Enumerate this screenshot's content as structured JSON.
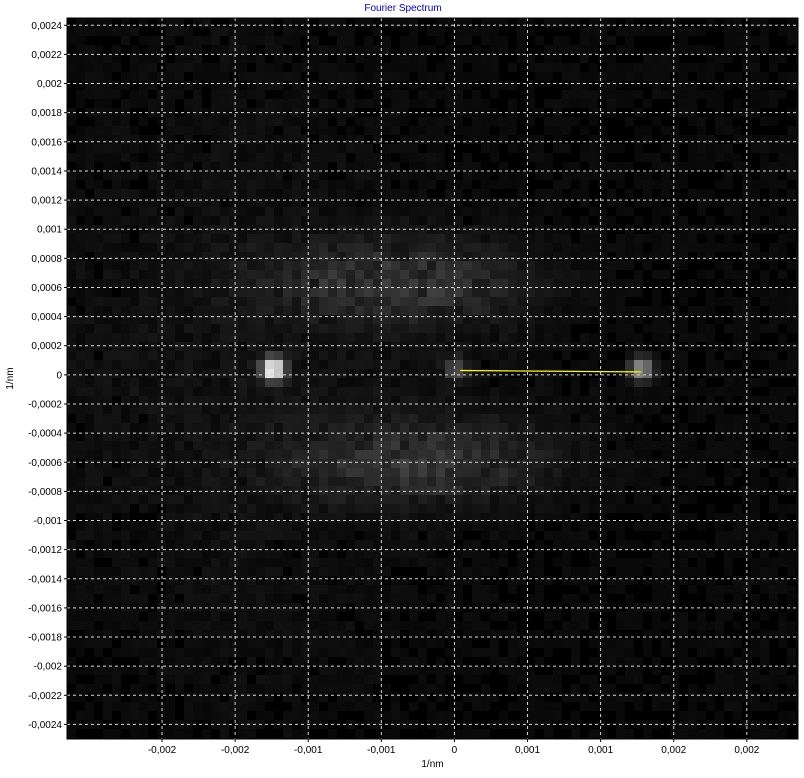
{
  "chart_data": {
    "type": "heatmap",
    "title": "Fourier Spectrum",
    "xlabel": "1/nm",
    "ylabel": "1/nm",
    "colormap": "grayscale",
    "grid": true,
    "title_color": "#0000cc",
    "grid_color": "#d8d8d8",
    "line_color": "#ffff00",
    "xlim": [
      -0.00265,
      0.00235
    ],
    "ylim": [
      -0.0025,
      0.00245
    ],
    "x_ticks": [
      -0.002,
      -0.0015,
      -0.001,
      -0.0005,
      0,
      0.0005,
      0.001,
      0.0015,
      0.002
    ],
    "x_tick_labels": [
      "-0,002",
      "-0,002",
      "-0,001",
      "-0,001",
      "0",
      "0,001",
      "0,001",
      "0,002",
      "0,002"
    ],
    "y_ticks": [
      0.0024,
      0.0022,
      0.002,
      0.0018,
      0.0016,
      0.0014,
      0.0012,
      0.001,
      0.0008,
      0.0006,
      0.0004,
      0.0002,
      0,
      -0.0002,
      -0.0004,
      -0.0006,
      -0.0008,
      -0.001,
      -0.0012,
      -0.0014,
      -0.0016,
      -0.0018,
      -0.002,
      -0.0022,
      -0.0024
    ],
    "y_tick_labels": [
      "0,0024",
      "0,0022",
      "0,002",
      "0,0018",
      "0,0016",
      "0,0014",
      "0,0012",
      "0,001",
      "0,0008",
      "0,0006",
      "0,0004",
      "0,0002",
      "0",
      "-0,0002",
      "-0,0004",
      "-0,0006",
      "-0,0008",
      "-0,001",
      "-0,0012",
      "-0,0014",
      "-0,0016",
      "-0,0018",
      "-0,002",
      "-0,0022",
      "-0,0024"
    ],
    "peaks": [
      {
        "x": -0.00124,
        "y": 4e-05,
        "intensity": 1.0
      },
      {
        "x": 0.00128,
        "y": 4e-05,
        "intensity": 1.0
      },
      {
        "x": 1e-05,
        "y": 4e-05,
        "intensity": 0.35
      }
    ],
    "diffuse_bands": [
      {
        "x": -0.0003,
        "y": 0.00065,
        "intensity": 0.22
      },
      {
        "x": -0.00015,
        "y": -0.0006,
        "intensity": 0.22
      }
    ],
    "line": {
      "x": [
        4e-05,
        0.00128
      ],
      "y": [
        3e-05,
        2e-05
      ]
    }
  }
}
